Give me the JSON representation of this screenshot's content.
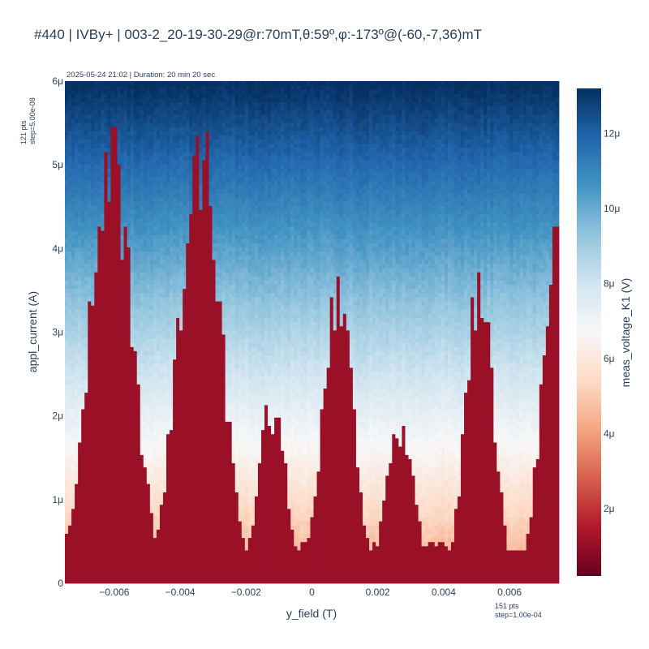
{
  "title": "#440 | IVBy+ | 003-2_20-19-30-29@r:70mT,θ:59º,φ:-173º@(-60,-7,36)mT",
  "meta": "2025-05-24 21:02 | Duration: 20 min 20 sec",
  "y_points": {
    "line1": "121 pts",
    "line2": "step=5.00e-08"
  },
  "x_points": {
    "line1": "151 pts",
    "line2": "step=1.00e-04"
  },
  "chart_data": {
    "type": "heatmap",
    "xlabel": "y_field (T)",
    "ylabel": "appl_current (A)",
    "colorbar_label": "meas_voltage_K1 (V)",
    "colorscale": "RdBu",
    "x_range": [
      -0.0075,
      0.0075
    ],
    "y_range": [
      0,
      6e-06
    ],
    "x_points": 151,
    "x_step": 0.0001,
    "y_points": 121,
    "y_step": 5e-08,
    "x_ticks": [
      {
        "value": -0.006,
        "label": "−0.006"
      },
      {
        "value": -0.004,
        "label": "−0.004"
      },
      {
        "value": -0.002,
        "label": "−0.002"
      },
      {
        "value": 0,
        "label": "0"
      },
      {
        "value": 0.002,
        "label": "0.002"
      },
      {
        "value": 0.004,
        "label": "0.004"
      },
      {
        "value": 0.006,
        "label": "0.006"
      }
    ],
    "y_ticks": [
      {
        "value": 0,
        "label": "0"
      },
      {
        "value": 1e-06,
        "label": "1μ"
      },
      {
        "value": 2e-06,
        "label": "2μ"
      },
      {
        "value": 3e-06,
        "label": "3μ"
      },
      {
        "value": 4e-06,
        "label": "4μ"
      },
      {
        "value": 5e-06,
        "label": "5μ"
      },
      {
        "value": 6e-06,
        "label": "6μ"
      }
    ],
    "colorbar_range": [
      2e-07,
      1.32e-05
    ],
    "colorbar_ticks": [
      {
        "value": 2e-06,
        "label": "2μ"
      },
      {
        "value": 4e-06,
        "label": "4μ"
      },
      {
        "value": 6e-06,
        "label": "6μ"
      },
      {
        "value": 8e-06,
        "label": "8μ"
      },
      {
        "value": 1e-05,
        "label": "10μ"
      },
      {
        "value": 1.2e-05,
        "label": "12μ"
      }
    ],
    "switching_current_lobes": [
      {
        "center": -0.0061,
        "peak": 5.2e-06,
        "width": 0.0009
      },
      {
        "center": -0.0034,
        "peak": 5.1e-06,
        "width": 0.0009
      },
      {
        "center": -0.0012,
        "peak": 2.1e-06,
        "width": 0.0006
      },
      {
        "center": 0.0008,
        "peak": 3.4e-06,
        "width": 0.00065
      },
      {
        "center": 0.0027,
        "peak": 1.9e-06,
        "width": 0.0006
      },
      {
        "center": 0.0051,
        "peak": 3.6e-06,
        "width": 0.0006
      },
      {
        "center": 0.0074,
        "peak": 3.9e-06,
        "width": 0.0006
      }
    ],
    "switching_current_floor": 4.5e-07,
    "voltage_superconducting": 3e-07,
    "voltage_min_normal": 4e-06,
    "voltage_max": 1.32e-05
  }
}
